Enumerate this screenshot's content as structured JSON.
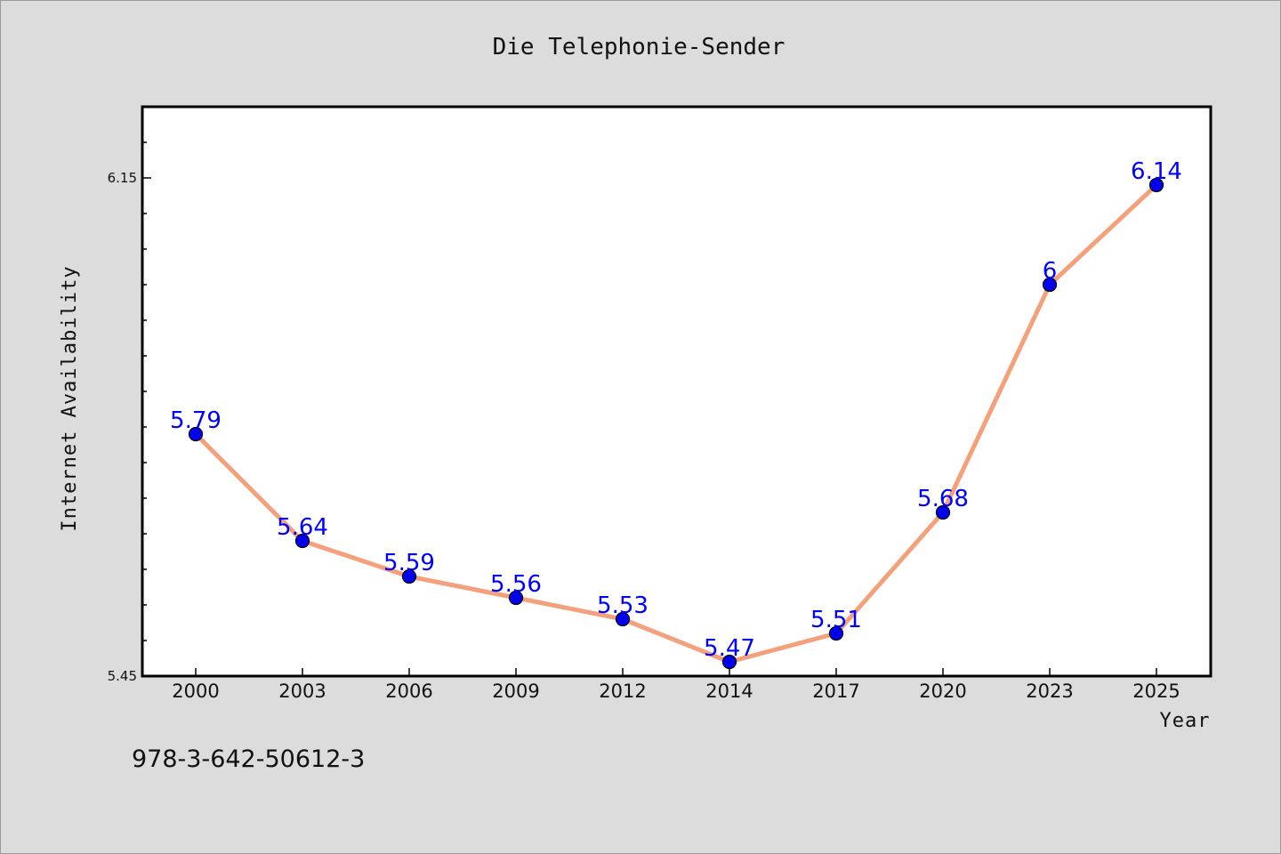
{
  "chart_data": {
    "type": "line",
    "title": "Die Telephonie-Sender",
    "xlabel": "Year",
    "ylabel": "Internet Availability",
    "categories": [
      "2000",
      "2003",
      "2006",
      "2009",
      "2012",
      "2014",
      "2017",
      "2020",
      "2023",
      "2025"
    ],
    "series": [
      {
        "values": [
          5.79,
          5.64,
          5.59,
          5.56,
          5.53,
          5.47,
          5.51,
          5.68,
          6,
          6.14
        ],
        "labels": [
          "5.79",
          "5.64",
          "5.59",
          "5.56",
          "5.53",
          "5.47",
          "5.51",
          "5.68",
          "6",
          "6.14"
        ],
        "line_color": "#f4a07a",
        "marker_color": "#0000ee"
      }
    ],
    "yticks": [
      "5.45",
      "6.15"
    ],
    "ylim": [
      5.45,
      6.25
    ],
    "grid": false,
    "legend": "none"
  },
  "footer": {
    "code": "978-3-642-50612-3"
  }
}
